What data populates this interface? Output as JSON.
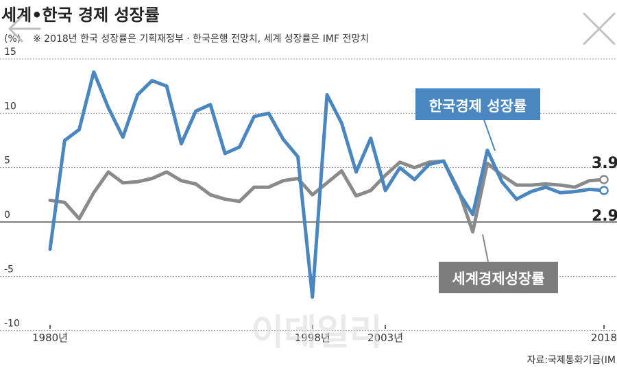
{
  "chart_data": {
    "type": "line",
    "title": "세계•한국 경제 성장률",
    "unit": "(%)",
    "note": "※ 2018년 한국 성장률은 기획재정부 · 한국은행 전망치, 세계 성장률은 IMF 전망치",
    "x_tick_labels": [
      "1980년",
      "1998년",
      "2003년",
      "2018"
    ],
    "x_tick_years": [
      1980,
      1998,
      2003,
      2018
    ],
    "y_ticks": [
      15,
      10,
      5,
      0,
      -5,
      -10
    ],
    "xlim": [
      1977,
      2019
    ],
    "ylim": [
      -11,
      15.5
    ],
    "x": [
      1980,
      1981,
      1982,
      1983,
      1984,
      1985,
      1986,
      1987,
      1988,
      1989,
      1990,
      1991,
      1992,
      1993,
      1994,
      1995,
      1996,
      1997,
      1998,
      1999,
      2000,
      2001,
      2002,
      2003,
      2004,
      2005,
      2006,
      2007,
      2008,
      2009,
      2010,
      2011,
      2012,
      2013,
      2014,
      2015,
      2016,
      2017,
      2018
    ],
    "series": [
      {
        "name": "한국경제 성장률",
        "color": "#4a86c0",
        "values": [
          -2.5,
          7.5,
          8.5,
          13.8,
          10.5,
          7.8,
          11.7,
          13.0,
          12.5,
          7.2,
          10.2,
          10.8,
          6.3,
          6.9,
          9.7,
          10.0,
          7.6,
          6.0,
          -6.9,
          11.7,
          9.1,
          4.6,
          7.7,
          2.9,
          5.0,
          3.9,
          5.3,
          5.6,
          2.8,
          0.7,
          6.6,
          3.7,
          2.1,
          2.8,
          3.2,
          2.7,
          2.8,
          3.0,
          2.9
        ]
      },
      {
        "name": "세계경제성장률",
        "color": "#8a8a8a",
        "values": [
          2.0,
          1.8,
          0.3,
          2.7,
          4.6,
          3.6,
          3.7,
          4.0,
          4.6,
          3.8,
          3.5,
          2.5,
          2.1,
          1.9,
          3.2,
          3.2,
          3.8,
          4.0,
          2.5,
          3.6,
          4.7,
          2.4,
          2.9,
          4.3,
          5.5,
          5.0,
          5.5,
          5.6,
          3.0,
          -0.9,
          5.4,
          4.3,
          3.4,
          3.4,
          3.5,
          3.4,
          3.2,
          3.8,
          3.9
        ]
      }
    ],
    "end_labels": [
      "3.9",
      "2.9"
    ],
    "watermark": "이데일리",
    "source": "자료:국제통화기금(IM"
  },
  "icons": {
    "back": "arrow-left-icon",
    "close": "close-icon"
  }
}
